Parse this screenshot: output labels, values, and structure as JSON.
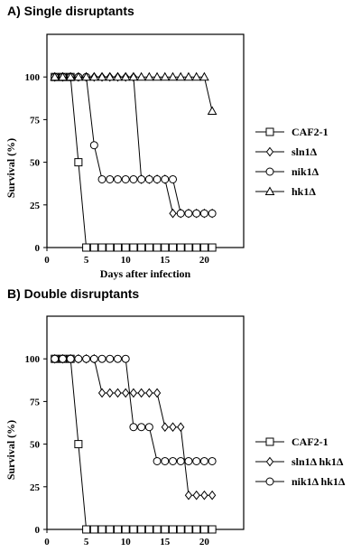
{
  "chart_data": [
    {
      "type": "line",
      "title": "A) Single disruptants",
      "xlabel": "Days after infection",
      "ylabel": "Survival (%)",
      "xlim": [
        0,
        25
      ],
      "ylim": [
        0,
        125
      ],
      "xticks": [
        0,
        5,
        10,
        15,
        20
      ],
      "yticks": [
        0,
        25,
        50,
        75,
        100
      ],
      "grid": false,
      "legend": "right",
      "series": [
        {
          "name": "CAF2-1",
          "marker": "square",
          "x": [
            1,
            2,
            3,
            4,
            5,
            6,
            7,
            8,
            9,
            10,
            11,
            12,
            13,
            14,
            15,
            16,
            17,
            18,
            19,
            20,
            21
          ],
          "y": [
            100,
            100,
            100,
            50,
            0,
            0,
            0,
            0,
            0,
            0,
            0,
            0,
            0,
            0,
            0,
            0,
            0,
            0,
            0,
            0,
            0
          ]
        },
        {
          "name": "sln1Δ",
          "marker": "diamond",
          "x": [
            1,
            2,
            3,
            4,
            5,
            6,
            7,
            8,
            9,
            10,
            11,
            12,
            13,
            14,
            15,
            16,
            17,
            18,
            19,
            20,
            21
          ],
          "y": [
            100,
            100,
            100,
            100,
            100,
            100,
            100,
            100,
            100,
            100,
            100,
            40,
            40,
            40,
            40,
            20,
            20,
            20,
            20,
            20,
            20
          ]
        },
        {
          "name": "nik1Δ",
          "marker": "circle",
          "x": [
            1,
            2,
            3,
            4,
            5,
            6,
            7,
            8,
            9,
            10,
            11,
            12,
            13,
            14,
            15,
            16,
            17,
            18,
            19,
            20,
            21
          ],
          "y": [
            100,
            100,
            100,
            100,
            100,
            60,
            40,
            40,
            40,
            40,
            40,
            40,
            40,
            40,
            40,
            40,
            20,
            20,
            20,
            20,
            20
          ]
        },
        {
          "name": "hk1Δ",
          "marker": "triangle",
          "x": [
            1,
            2,
            3,
            4,
            5,
            6,
            7,
            8,
            9,
            10,
            11,
            12,
            13,
            14,
            15,
            16,
            17,
            18,
            19,
            20,
            21
          ],
          "y": [
            100,
            100,
            100,
            100,
            100,
            100,
            100,
            100,
            100,
            100,
            100,
            100,
            100,
            100,
            100,
            100,
            100,
            100,
            100,
            100,
            80
          ]
        }
      ]
    },
    {
      "type": "line",
      "title": "B) Double disruptants",
      "xlabel": "Days after infection",
      "ylabel": "Survival (%)",
      "xlim": [
        0,
        25
      ],
      "ylim": [
        0,
        125
      ],
      "xticks": [
        0,
        5,
        10,
        15,
        20
      ],
      "yticks": [
        0,
        25,
        50,
        75,
        100
      ],
      "grid": false,
      "legend": "right",
      "series": [
        {
          "name": "CAF2-1",
          "marker": "square",
          "x": [
            1,
            2,
            3,
            4,
            5,
            6,
            7,
            8,
            9,
            10,
            11,
            12,
            13,
            14,
            15,
            16,
            17,
            18,
            19,
            20,
            21
          ],
          "y": [
            100,
            100,
            100,
            50,
            0,
            0,
            0,
            0,
            0,
            0,
            0,
            0,
            0,
            0,
            0,
            0,
            0,
            0,
            0,
            0,
            0
          ]
        },
        {
          "name": "sln1Δ hk1Δ",
          "marker": "diamond",
          "x": [
            1,
            2,
            3,
            4,
            5,
            6,
            7,
            8,
            9,
            10,
            11,
            12,
            13,
            14,
            15,
            16,
            17,
            18,
            19,
            20,
            21
          ],
          "y": [
            100,
            100,
            100,
            100,
            100,
            100,
            80,
            80,
            80,
            80,
            80,
            80,
            80,
            80,
            60,
            60,
            60,
            20,
            20,
            20,
            20
          ]
        },
        {
          "name": "nik1Δ hk1Δ",
          "marker": "circle",
          "x": [
            1,
            2,
            3,
            4,
            5,
            6,
            7,
            8,
            9,
            10,
            11,
            12,
            13,
            14,
            15,
            16,
            17,
            18,
            19,
            20,
            21
          ],
          "y": [
            100,
            100,
            100,
            100,
            100,
            100,
            100,
            100,
            100,
            100,
            60,
            60,
            60,
            40,
            40,
            40,
            40,
            40,
            40,
            40,
            40
          ]
        }
      ]
    }
  ]
}
